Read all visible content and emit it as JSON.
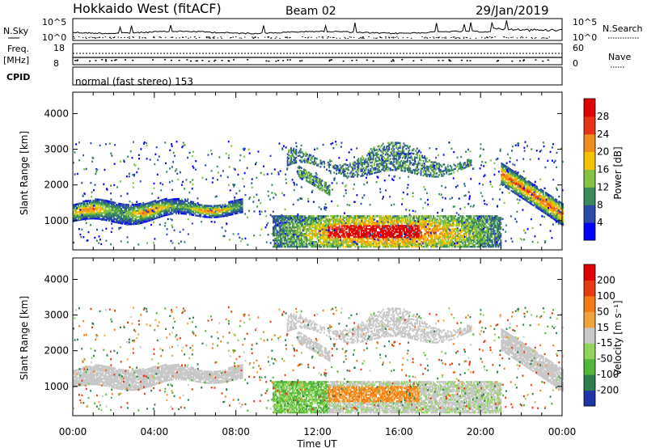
{
  "header": {
    "station": "Hokkaido West (fitACF)",
    "beam": "Beam 02",
    "date": "29/Jan/2019"
  },
  "noise_panel": {
    "left_label": "N.Sky",
    "right_label": "N.Search",
    "ticks_left": [
      "10^5",
      "10^0"
    ],
    "ticks_right": [
      "10^5",
      "10^0"
    ]
  },
  "freq_panel": {
    "left_label_1": "Freq.",
    "left_label_2": "[MHz]",
    "ticks_left": [
      "18",
      "8"
    ],
    "right_label": "Nave",
    "ticks_right": [
      "60",
      "0"
    ]
  },
  "cpid": {
    "label": "CPID",
    "mode": "normal (fast stereo) 153"
  },
  "chart_data": [
    {
      "type": "heatmap",
      "quantity": "Power",
      "ylabel": "Slant Range [km]",
      "ylim": [
        180,
        4600
      ],
      "yticks": [
        1000,
        2000,
        3000,
        4000
      ],
      "colorbar_label": "Power [dB]",
      "colorbar_ticks": [
        "4",
        "8",
        "12",
        "16",
        "20",
        "24",
        "28"
      ],
      "colorbar_colors": [
        "#0000ff",
        "#2b4aa8",
        "#3a8a5c",
        "#82c341",
        "#f6c200",
        "#f08c1c",
        "#e83214",
        "#e00000"
      ],
      "xlim": [
        "00:00",
        "24:00"
      ],
      "echo_regions": [
        {
          "t": [
            0.0,
            8.3
          ],
          "range_km": [
            900,
            1500
          ],
          "peak_db": 20
        },
        {
          "t": [
            9.8,
            21.0
          ],
          "range_km": [
            300,
            1100
          ],
          "peak_db": 28
        },
        {
          "t": [
            10.5,
            19.5
          ],
          "range_km": [
            2200,
            3000
          ],
          "peak_db": 12
        },
        {
          "t": [
            21.0,
            24.0
          ],
          "range_km": [
            900,
            2500
          ],
          "peak_db": 24
        }
      ]
    },
    {
      "type": "heatmap",
      "quantity": "Velocity",
      "ylabel": "Slant Range [km]",
      "ylim": [
        180,
        4600
      ],
      "yticks": [
        1000,
        2000,
        3000,
        4000
      ],
      "colorbar_label": "Velocity [m s⁻¹]",
      "colorbar_ticks": [
        "200",
        "100",
        "50",
        "15",
        "-15",
        "-50",
        "-100",
        "-200"
      ],
      "colorbar_colors": [
        "#1f34a8",
        "#2e7d4c",
        "#52b63a",
        "#8fd55a",
        "#c8c8c8",
        "#f2a23a",
        "#f47b12",
        "#e63b10",
        "#e00000"
      ],
      "xlim": [
        "00:00",
        "24:00"
      ],
      "xticks": [
        "00:00",
        "04:00",
        "08:00",
        "12:00",
        "16:00",
        "20:00",
        "00:00"
      ],
      "xlabel": "Time UT"
    }
  ]
}
